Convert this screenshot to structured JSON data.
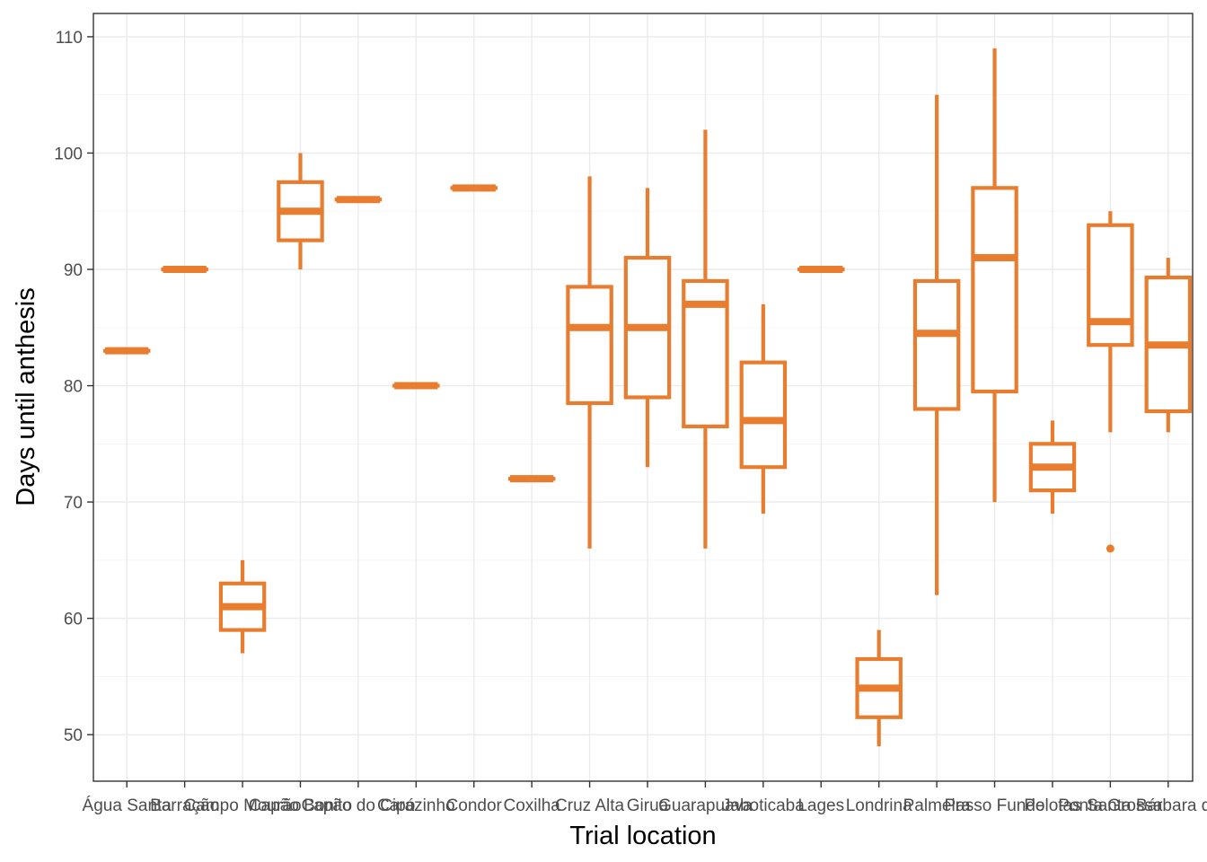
{
  "chart_data": {
    "type": "box",
    "xlabel": "Trial location",
    "ylabel": "Days until anthesis",
    "ylim": [
      46,
      112
    ],
    "yticks": [
      50,
      60,
      70,
      80,
      90,
      100,
      110
    ],
    "grid": true,
    "color": "#E87D2F",
    "categories": [
      "Água Santa",
      "Barração",
      "Campo Mourão",
      "Capão Bonito",
      "Capão do Cipó",
      "Carazinho",
      "Condor",
      "Coxilha",
      "Cruz Alta",
      "Girua",
      "Guarapuava",
      "Jaboticaba",
      "Lages",
      "Londrina",
      "Palmeira",
      "Passo Fundo",
      "Pelotas",
      "Ponta Grossa",
      "Santa Bárbara do Sul"
    ],
    "boxes": [
      {
        "min": 83,
        "q1": 83,
        "median": 83,
        "q3": 83,
        "max": 83,
        "outliers": []
      },
      {
        "min": 90,
        "q1": 90,
        "median": 90,
        "q3": 90,
        "max": 90,
        "outliers": []
      },
      {
        "min": 57,
        "q1": 59,
        "median": 61,
        "q3": 63,
        "max": 65,
        "outliers": []
      },
      {
        "min": 90,
        "q1": 92.5,
        "median": 95,
        "q3": 97.5,
        "max": 100,
        "outliers": []
      },
      {
        "min": 96,
        "q1": 96,
        "median": 96,
        "q3": 96,
        "max": 96,
        "outliers": []
      },
      {
        "min": 80,
        "q1": 80,
        "median": 80,
        "q3": 80,
        "max": 80,
        "outliers": []
      },
      {
        "min": 97,
        "q1": 97,
        "median": 97,
        "q3": 97,
        "max": 97,
        "outliers": []
      },
      {
        "min": 72,
        "q1": 72,
        "median": 72,
        "q3": 72,
        "max": 72,
        "outliers": []
      },
      {
        "min": 66,
        "q1": 78.5,
        "median": 85,
        "q3": 88.5,
        "max": 98,
        "outliers": []
      },
      {
        "min": 73,
        "q1": 79,
        "median": 85,
        "q3": 91,
        "max": 97,
        "outliers": []
      },
      {
        "min": 66,
        "q1": 76.5,
        "median": 87,
        "q3": 89,
        "max": 102,
        "outliers": []
      },
      {
        "min": 69,
        "q1": 73,
        "median": 77,
        "q3": 82,
        "max": 87,
        "outliers": []
      },
      {
        "min": 90,
        "q1": 90,
        "median": 90,
        "q3": 90,
        "max": 90,
        "outliers": []
      },
      {
        "min": 49,
        "q1": 51.5,
        "median": 54,
        "q3": 56.5,
        "max": 59,
        "outliers": []
      },
      {
        "min": 62,
        "q1": 78,
        "median": 84.5,
        "q3": 89,
        "max": 105,
        "outliers": []
      },
      {
        "min": 70,
        "q1": 79.5,
        "median": 91,
        "q3": 97,
        "max": 109,
        "outliers": []
      },
      {
        "min": 69,
        "q1": 71,
        "median": 73,
        "q3": 75,
        "max": 77,
        "outliers": []
      },
      {
        "min": 76,
        "q1": 83.5,
        "median": 85.5,
        "q3": 93.8,
        "max": 95,
        "outliers": [
          66
        ]
      },
      {
        "min": 76,
        "q1": 77.8,
        "median": 83.5,
        "q3": 89.3,
        "max": 91,
        "outliers": []
      }
    ]
  }
}
